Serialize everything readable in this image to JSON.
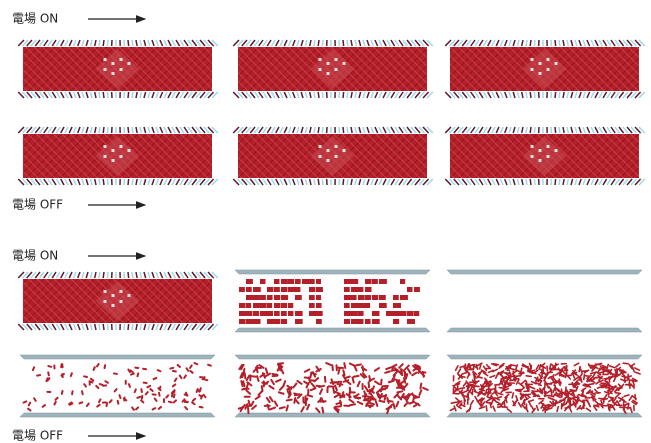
{
  "labels": [
    "電場 ON",
    "電場 OFF",
    "電場 ON",
    "電場 OFF"
  ]
}
